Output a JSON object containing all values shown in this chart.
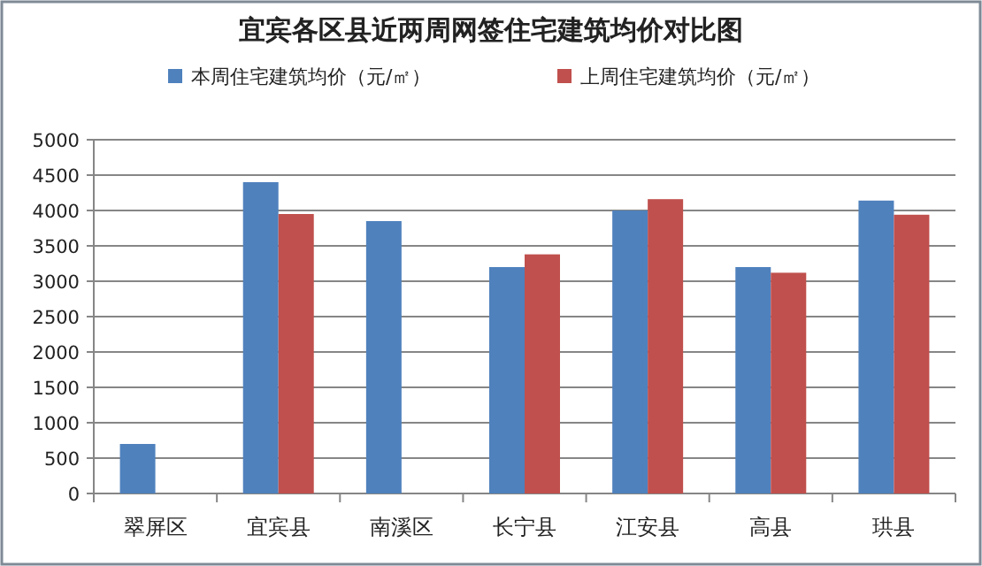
{
  "chart_data": {
    "type": "bar",
    "title": "宜宾各区县近两周网签住宅建筑均价对比图",
    "categories": [
      "翠屏区",
      "宜宾县",
      "南溪区",
      "长宁县",
      "江安县",
      "高县",
      "珙县"
    ],
    "series": [
      {
        "name": "本周住宅建筑均价（元/㎡）",
        "color": "#4f81bd",
        "values": [
          700,
          4400,
          3850,
          3200,
          4000,
          3200,
          4140
        ]
      },
      {
        "name": "上周住宅建筑均价（元/㎡）",
        "color": "#c0504d",
        "values": [
          null,
          3950,
          null,
          3380,
          4160,
          3120,
          3940
        ]
      }
    ],
    "ylim": [
      0,
      5000
    ],
    "yticks": [
      0,
      500,
      1000,
      1500,
      2000,
      2500,
      3000,
      3500,
      4000,
      4500,
      5000
    ],
    "grid": "y",
    "legend": "top"
  }
}
